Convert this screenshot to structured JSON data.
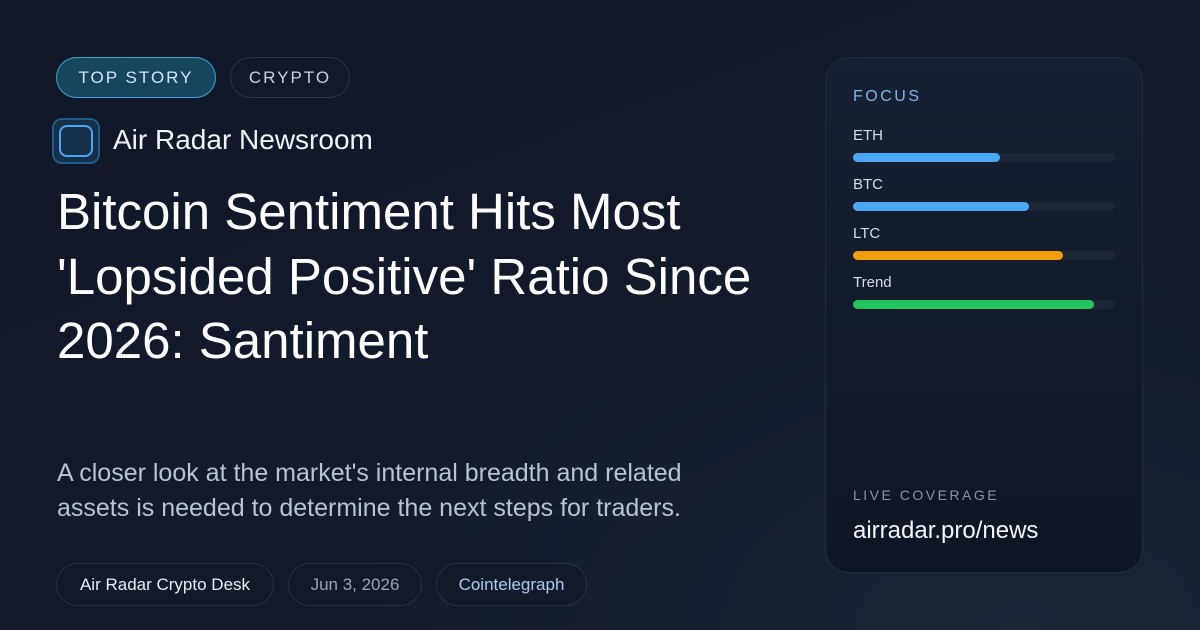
{
  "tags": [
    "TOP STORY",
    "CRYPTO"
  ],
  "source": "Air Radar Newsroom",
  "headline": "Bitcoin Sentiment Hits Most 'Lopsided Positive' Ratio Since 2026: Santiment",
  "subtitle": "A closer look at the market's internal breadth and related assets is needed to determine the next steps for traders.",
  "meta": [
    "Air Radar Crypto Desk",
    "Jun 3, 2026",
    "Cointelegraph"
  ],
  "chart_data": {
    "type": "bar",
    "orientation": "horizontal",
    "title": "FOCUS",
    "categories": [
      "ETH",
      "BTC",
      "LTC",
      "Trend"
    ],
    "values": [
      56,
      67,
      80,
      92
    ],
    "colors": [
      "#4aa8f5",
      "#4aa8f5",
      "#f59e0b",
      "#22c55e"
    ],
    "xlim": [
      0,
      100
    ]
  },
  "footer": {
    "label": "LIVE COVERAGE",
    "url": "airradar.pro/news"
  }
}
